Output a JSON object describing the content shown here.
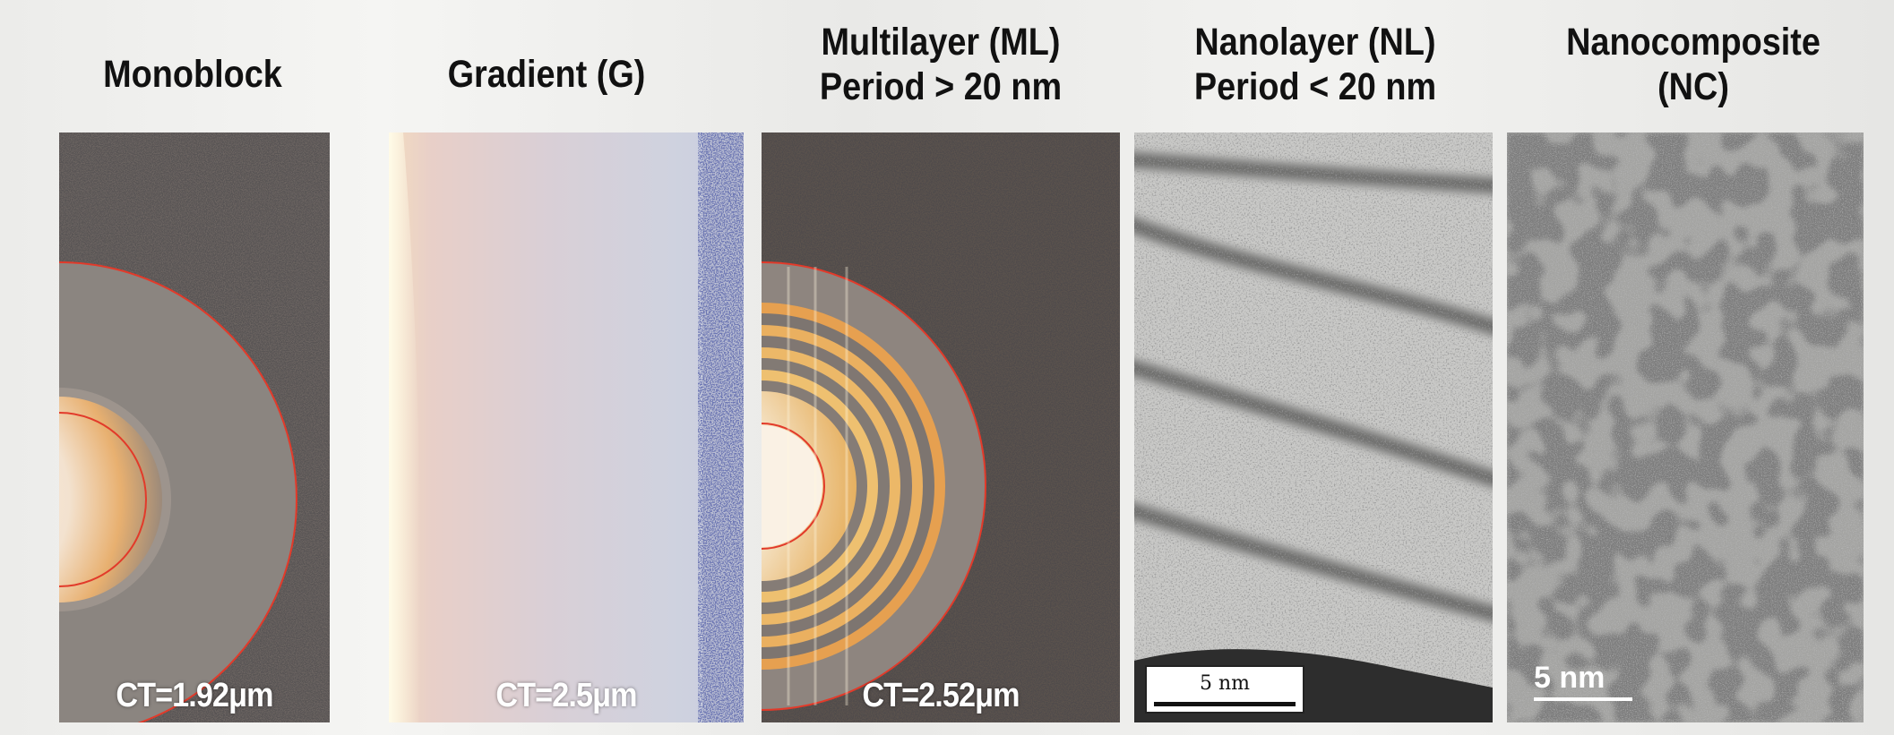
{
  "columns": [
    {
      "title_lines": [
        "Monoblock"
      ],
      "caption": "CT=1.92μm"
    },
    {
      "title_lines": [
        "Gradient (G)"
      ],
      "caption": "CT=2.5μm"
    },
    {
      "title_lines": [
        "Multilayer (ML)",
        "Period > 20 nm"
      ],
      "caption": "CT=2.52μm"
    },
    {
      "title_lines": [
        "Nanolayer (NL)",
        "Period < 20 nm"
      ],
      "scale_label": "5 nm"
    },
    {
      "title_lines": [
        "Nanocomposite",
        "(NC)"
      ],
      "scale_label": "5 nm"
    }
  ],
  "colors": {
    "ring": "#e23a2a",
    "coating_gray": "#8a8480",
    "substrate_dark": "#4a4542",
    "core_light": "#f5e8d8"
  }
}
